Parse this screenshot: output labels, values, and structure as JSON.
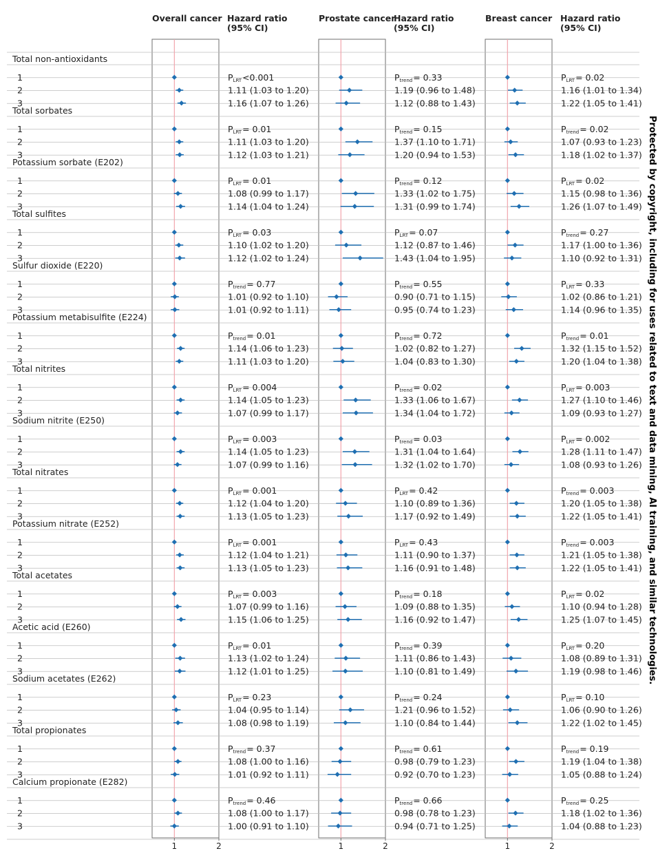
{
  "chart_data": {
    "type": "forest",
    "xlim": [
      0.5,
      2
    ],
    "reference_line": 1,
    "xticks": [
      "1",
      "2"
    ],
    "panels": [
      {
        "title": "Overall cancer",
        "value_header": [
          "Hazard ratio",
          "(95% CI)"
        ]
      },
      {
        "title": "Prostate cancer",
        "value_header": [
          "Hazard ratio",
          "(95% CI)"
        ]
      },
      {
        "title": "Breast cancer",
        "value_header": [
          "Hazard ratio",
          "(95% CI)"
        ]
      }
    ],
    "groups": [
      {
        "name": "Total non-antioxidants",
        "rows": [
          [
            {
              "hr": 1,
              "p": "LRT",
              "pt": "<0.001"
            },
            {
              "hr": 1,
              "p": "trend",
              "pt": "= 0.33"
            },
            {
              "hr": 1,
              "p": "LRT",
              "pt": "= 0.02"
            }
          ],
          [
            {
              "hr": 1.11,
              "lo": 1.03,
              "hi": 1.2
            },
            {
              "hr": 1.19,
              "lo": 0.96,
              "hi": 1.48
            },
            {
              "hr": 1.16,
              "lo": 1.01,
              "hi": 1.34
            }
          ],
          [
            {
              "hr": 1.16,
              "lo": 1.07,
              "hi": 1.26
            },
            {
              "hr": 1.12,
              "lo": 0.88,
              "hi": 1.43
            },
            {
              "hr": 1.22,
              "lo": 1.05,
              "hi": 1.41
            }
          ]
        ]
      },
      {
        "name": "Total sorbates",
        "rows": [
          [
            {
              "hr": 1,
              "p": "LRT",
              "pt": "= 0.01"
            },
            {
              "hr": 1,
              "p": "trend",
              "pt": "= 0.15"
            },
            {
              "hr": 1,
              "p": "trend",
              "pt": "= 0.02"
            }
          ],
          [
            {
              "hr": 1.11,
              "lo": 1.03,
              "hi": 1.2
            },
            {
              "hr": 1.37,
              "lo": 1.1,
              "hi": 1.71
            },
            {
              "hr": 1.07,
              "lo": 0.93,
              "hi": 1.23
            }
          ],
          [
            {
              "hr": 1.12,
              "lo": 1.03,
              "hi": 1.21
            },
            {
              "hr": 1.2,
              "lo": 0.94,
              "hi": 1.53
            },
            {
              "hr": 1.18,
              "lo": 1.02,
              "hi": 1.37
            }
          ]
        ]
      },
      {
        "name": "Potassium sorbate (E202)",
        "rows": [
          [
            {
              "hr": 1,
              "p": "LRT",
              "pt": "= 0.01"
            },
            {
              "hr": 1,
              "p": "trend",
              "pt": "= 0.12"
            },
            {
              "hr": 1,
              "p": "LRT",
              "pt": "= 0.02"
            }
          ],
          [
            {
              "hr": 1.08,
              "lo": 0.99,
              "hi": 1.17
            },
            {
              "hr": 1.33,
              "lo": 1.02,
              "hi": 1.75
            },
            {
              "hr": 1.15,
              "lo": 0.98,
              "hi": 1.36
            }
          ],
          [
            {
              "hr": 1.14,
              "lo": 1.04,
              "hi": 1.24
            },
            {
              "hr": 1.31,
              "lo": 0.99,
              "hi": 1.74
            },
            {
              "hr": 1.26,
              "lo": 1.07,
              "hi": 1.49
            }
          ]
        ]
      },
      {
        "name": "Total sulfites",
        "rows": [
          [
            {
              "hr": 1,
              "p": "LRT",
              "pt": "= 0.03"
            },
            {
              "hr": 1,
              "p": "LRT",
              "pt": "= 0.07"
            },
            {
              "hr": 1,
              "p": "trend",
              "pt": "= 0.27"
            }
          ],
          [
            {
              "hr": 1.1,
              "lo": 1.02,
              "hi": 1.2
            },
            {
              "hr": 1.12,
              "lo": 0.87,
              "hi": 1.46
            },
            {
              "hr": 1.17,
              "lo": 1.0,
              "hi": 1.36
            }
          ],
          [
            {
              "hr": 1.12,
              "lo": 1.02,
              "hi": 1.24
            },
            {
              "hr": 1.43,
              "lo": 1.04,
              "hi": 1.95
            },
            {
              "hr": 1.1,
              "lo": 0.92,
              "hi": 1.31
            }
          ]
        ]
      },
      {
        "name": "Sulfur dioxide (E220)",
        "rows": [
          [
            {
              "hr": 1,
              "p": "trend",
              "pt": "= 0.77"
            },
            {
              "hr": 1,
              "p": "trend",
              "pt": "= 0.55"
            },
            {
              "hr": 1,
              "p": "LRT",
              "pt": "= 0.33"
            }
          ],
          [
            {
              "hr": 1.01,
              "lo": 0.92,
              "hi": 1.1
            },
            {
              "hr": 0.9,
              "lo": 0.71,
              "hi": 1.15
            },
            {
              "hr": 1.02,
              "lo": 0.86,
              "hi": 1.21
            }
          ],
          [
            {
              "hr": 1.01,
              "lo": 0.92,
              "hi": 1.11
            },
            {
              "hr": 0.95,
              "lo": 0.74,
              "hi": 1.23
            },
            {
              "hr": 1.14,
              "lo": 0.96,
              "hi": 1.35
            }
          ]
        ]
      },
      {
        "name": "Potassium metabisulfite (E224)",
        "rows": [
          [
            {
              "hr": 1,
              "p": "trend",
              "pt": "= 0.01"
            },
            {
              "hr": 1,
              "p": "trend",
              "pt": "= 0.72"
            },
            {
              "hr": 1,
              "p": "trend",
              "pt": "= 0.01"
            }
          ],
          [
            {
              "hr": 1.14,
              "lo": 1.06,
              "hi": 1.23
            },
            {
              "hr": 1.02,
              "lo": 0.82,
              "hi": 1.27
            },
            {
              "hr": 1.32,
              "lo": 1.15,
              "hi": 1.52
            }
          ],
          [
            {
              "hr": 1.11,
              "lo": 1.03,
              "hi": 1.2
            },
            {
              "hr": 1.04,
              "lo": 0.83,
              "hi": 1.3
            },
            {
              "hr": 1.2,
              "lo": 1.04,
              "hi": 1.38
            }
          ]
        ]
      },
      {
        "name": "Total nitrites",
        "rows": [
          [
            {
              "hr": 1,
              "p": "LRT",
              "pt": "= 0.004"
            },
            {
              "hr": 1,
              "p": "trend",
              "pt": "= 0.02"
            },
            {
              "hr": 1,
              "p": "LRT",
              "pt": "= 0.003"
            }
          ],
          [
            {
              "hr": 1.14,
              "lo": 1.05,
              "hi": 1.23
            },
            {
              "hr": 1.33,
              "lo": 1.06,
              "hi": 1.67
            },
            {
              "hr": 1.27,
              "lo": 1.1,
              "hi": 1.46
            }
          ],
          [
            {
              "hr": 1.07,
              "lo": 0.99,
              "hi": 1.17
            },
            {
              "hr": 1.34,
              "lo": 1.04,
              "hi": 1.72
            },
            {
              "hr": 1.09,
              "lo": 0.93,
              "hi": 1.27
            }
          ]
        ]
      },
      {
        "name": "Sodium nitrite (E250)",
        "rows": [
          [
            {
              "hr": 1,
              "p": "LRT",
              "pt": "= 0.003"
            },
            {
              "hr": 1,
              "p": "trend",
              "pt": "= 0.03"
            },
            {
              "hr": 1,
              "p": "LRT",
              "pt": "= 0.002"
            }
          ],
          [
            {
              "hr": 1.14,
              "lo": 1.05,
              "hi": 1.23
            },
            {
              "hr": 1.31,
              "lo": 1.04,
              "hi": 1.64
            },
            {
              "hr": 1.28,
              "lo": 1.11,
              "hi": 1.47
            }
          ],
          [
            {
              "hr": 1.07,
              "lo": 0.99,
              "hi": 1.16
            },
            {
              "hr": 1.32,
              "lo": 1.02,
              "hi": 1.7
            },
            {
              "hr": 1.08,
              "lo": 0.93,
              "hi": 1.26
            }
          ]
        ]
      },
      {
        "name": "Total nitrates",
        "rows": [
          [
            {
              "hr": 1,
              "p": "LRT",
              "pt": "= 0.001"
            },
            {
              "hr": 1,
              "p": "LRT",
              "pt": "= 0.42"
            },
            {
              "hr": 1,
              "p": "trend",
              "pt": "= 0.003"
            }
          ],
          [
            {
              "hr": 1.12,
              "lo": 1.04,
              "hi": 1.2
            },
            {
              "hr": 1.1,
              "lo": 0.89,
              "hi": 1.36
            },
            {
              "hr": 1.2,
              "lo": 1.05,
              "hi": 1.38
            }
          ],
          [
            {
              "hr": 1.13,
              "lo": 1.05,
              "hi": 1.23
            },
            {
              "hr": 1.17,
              "lo": 0.92,
              "hi": 1.49
            },
            {
              "hr": 1.22,
              "lo": 1.05,
              "hi": 1.41
            }
          ]
        ]
      },
      {
        "name": "Potassium nitrate (E252)",
        "rows": [
          [
            {
              "hr": 1,
              "p": "LRT",
              "pt": "= 0.001"
            },
            {
              "hr": 1,
              "p": "LRT",
              "pt": "= 0.43"
            },
            {
              "hr": 1,
              "p": "trend",
              "pt": "= 0.003"
            }
          ],
          [
            {
              "hr": 1.12,
              "lo": 1.04,
              "hi": 1.21
            },
            {
              "hr": 1.11,
              "lo": 0.9,
              "hi": 1.37
            },
            {
              "hr": 1.21,
              "lo": 1.05,
              "hi": 1.38
            }
          ],
          [
            {
              "hr": 1.13,
              "lo": 1.05,
              "hi": 1.23
            },
            {
              "hr": 1.16,
              "lo": 0.91,
              "hi": 1.48
            },
            {
              "hr": 1.22,
              "lo": 1.05,
              "hi": 1.41
            }
          ]
        ]
      },
      {
        "name": "Total acetates",
        "rows": [
          [
            {
              "hr": 1,
              "p": "LRT",
              "pt": "= 0.003"
            },
            {
              "hr": 1,
              "p": "trend",
              "pt": "= 0.18"
            },
            {
              "hr": 1,
              "p": "LRT",
              "pt": "= 0.02"
            }
          ],
          [
            {
              "hr": 1.07,
              "lo": 0.99,
              "hi": 1.16
            },
            {
              "hr": 1.09,
              "lo": 0.88,
              "hi": 1.35
            },
            {
              "hr": 1.1,
              "lo": 0.94,
              "hi": 1.28
            }
          ],
          [
            {
              "hr": 1.15,
              "lo": 1.06,
              "hi": 1.25
            },
            {
              "hr": 1.16,
              "lo": 0.92,
              "hi": 1.47
            },
            {
              "hr": 1.25,
              "lo": 1.07,
              "hi": 1.45
            }
          ]
        ]
      },
      {
        "name": "Acetic acid (E260)",
        "rows": [
          [
            {
              "hr": 1,
              "p": "LRT",
              "pt": "= 0.01"
            },
            {
              "hr": 1,
              "p": "trend",
              "pt": "= 0.39"
            },
            {
              "hr": 1,
              "p": "LRT",
              "pt": "= 0.20"
            }
          ],
          [
            {
              "hr": 1.13,
              "lo": 1.02,
              "hi": 1.24
            },
            {
              "hr": 1.11,
              "lo": 0.86,
              "hi": 1.43
            },
            {
              "hr": 1.08,
              "lo": 0.89,
              "hi": 1.31
            }
          ],
          [
            {
              "hr": 1.12,
              "lo": 1.01,
              "hi": 1.25
            },
            {
              "hr": 1.1,
              "lo": 0.81,
              "hi": 1.49
            },
            {
              "hr": 1.19,
              "lo": 0.98,
              "hi": 1.46
            }
          ]
        ]
      },
      {
        "name": "Sodium acetates (E262)",
        "rows": [
          [
            {
              "hr": 1,
              "p": "LRT",
              "pt": "= 0.23"
            },
            {
              "hr": 1,
              "p": "trend",
              "pt": "= 0.24"
            },
            {
              "hr": 1,
              "p": "LRT",
              "pt": "= 0.10"
            }
          ],
          [
            {
              "hr": 1.04,
              "lo": 0.95,
              "hi": 1.14
            },
            {
              "hr": 1.21,
              "lo": 0.96,
              "hi": 1.52
            },
            {
              "hr": 1.06,
              "lo": 0.9,
              "hi": 1.26
            }
          ],
          [
            {
              "hr": 1.08,
              "lo": 0.98,
              "hi": 1.19
            },
            {
              "hr": 1.1,
              "lo": 0.84,
              "hi": 1.44
            },
            {
              "hr": 1.22,
              "lo": 1.02,
              "hi": 1.45
            }
          ]
        ]
      },
      {
        "name": "Total propionates",
        "rows": [
          [
            {
              "hr": 1,
              "p": "trend",
              "pt": "= 0.37"
            },
            {
              "hr": 1,
              "p": "trend",
              "pt": "= 0.61"
            },
            {
              "hr": 1,
              "p": "trend",
              "pt": "= 0.19"
            }
          ],
          [
            {
              "hr": 1.08,
              "lo": 1.0,
              "hi": 1.16
            },
            {
              "hr": 0.98,
              "lo": 0.79,
              "hi": 1.23
            },
            {
              "hr": 1.19,
              "lo": 1.04,
              "hi": 1.38
            }
          ],
          [
            {
              "hr": 1.01,
              "lo": 0.92,
              "hi": 1.11
            },
            {
              "hr": 0.92,
              "lo": 0.7,
              "hi": 1.23
            },
            {
              "hr": 1.05,
              "lo": 0.88,
              "hi": 1.24
            }
          ]
        ]
      },
      {
        "name": "Calcium propionate (E282)",
        "rows": [
          [
            {
              "hr": 1,
              "p": "trend",
              "pt": "= 0.46"
            },
            {
              "hr": 1,
              "p": "trend",
              "pt": "= 0.66"
            },
            {
              "hr": 1,
              "p": "trend",
              "pt": "= 0.25"
            }
          ],
          [
            {
              "hr": 1.08,
              "lo": 1.0,
              "hi": 1.17
            },
            {
              "hr": 0.98,
              "lo": 0.78,
              "hi": 1.23
            },
            {
              "hr": 1.18,
              "lo": 1.02,
              "hi": 1.36
            }
          ],
          [
            {
              "hr": 1.0,
              "lo": 0.91,
              "hi": 1.1
            },
            {
              "hr": 0.94,
              "lo": 0.71,
              "hi": 1.25
            },
            {
              "hr": 1.04,
              "lo": 0.88,
              "hi": 1.23
            }
          ]
        ]
      }
    ]
  },
  "side_text": "Protected by copyright, including for uses related to text and data mining, AI training, and similar technologies.",
  "colors": {
    "marker": "#1f6fb2",
    "refline": "#f2a5ad",
    "gridline": "#bdbdbd",
    "frame": "#6d6d6d",
    "text": "#222222"
  }
}
